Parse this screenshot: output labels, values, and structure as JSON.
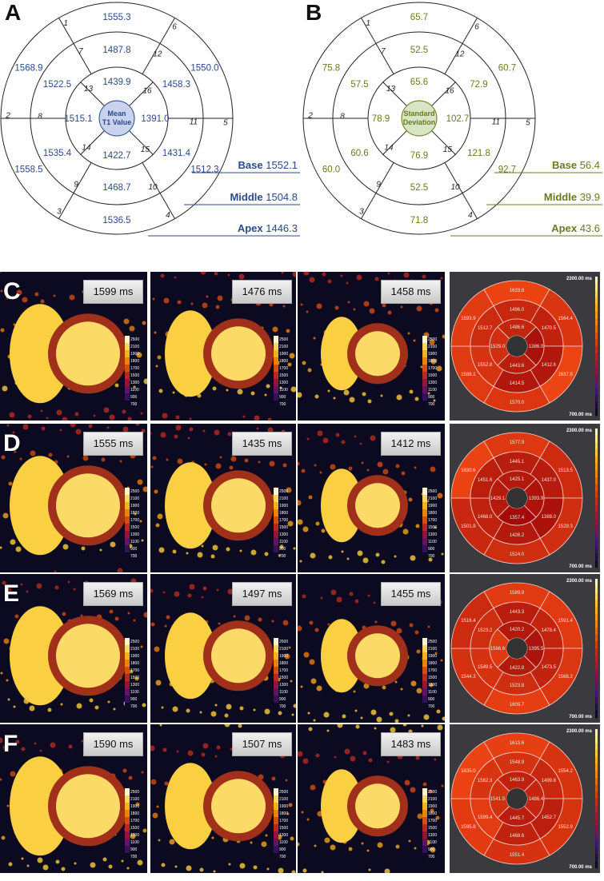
{
  "panel_a": {
    "label": "A",
    "center_text": [
      "Mean",
      "T1 Value"
    ],
    "values": {
      "s1": "1555.3",
      "s2": "1568.9",
      "s3": "1558.5",
      "s4": "1536.5",
      "s5": "1512.3",
      "s6": "1550.0",
      "s7": "1487.8",
      "s8": "1522.5",
      "s9": "1535.4",
      "s10": "1468.7",
      "s11": "1431.4",
      "s12": "1458.3",
      "s13": "1439.9",
      "s14": "1515.1",
      "s15": "1422.7",
      "s16": "1391.0"
    },
    "summary": [
      {
        "name": "Base",
        "value": "1552.1"
      },
      {
        "name": "Middle",
        "value": "1504.8"
      },
      {
        "name": "Apex",
        "value": "1446.3"
      }
    ],
    "color": "#2a4a8a",
    "center_fill": "#c9d3ee"
  },
  "panel_b": {
    "label": "B",
    "center_text": [
      "Standard",
      "Deviation"
    ],
    "values": {
      "s1": "65.7",
      "s2": "75.8",
      "s3": "60.0",
      "s4": "71.8",
      "s5": "92.7",
      "s6": "60.7",
      "s7": "52.5",
      "s8": "57.5",
      "s9": "60.6",
      "s10": "52.5",
      "s11": "121.8",
      "s12": "72.9",
      "s13": "65.6",
      "s14": "78.9",
      "s15": "76.9",
      "s16": "102.7"
    },
    "summary": [
      {
        "name": "Base",
        "value": "56.4"
      },
      {
        "name": "Middle",
        "value": "39.9"
      },
      {
        "name": "Apex",
        "value": "43.6"
      }
    ],
    "color": "#6b7a1e",
    "center_fill": "#d7e5c4"
  },
  "segment_numbers": [
    "1",
    "2",
    "3",
    "4",
    "5",
    "6",
    "7",
    "8",
    "9",
    "10",
    "11",
    "12",
    "13",
    "14",
    "15",
    "16"
  ],
  "rows": [
    {
      "label": "C",
      "times": [
        "1599 ms",
        "1476 ms",
        "1458 ms"
      ],
      "colorbar_ticks": [
        "2500",
        "2100",
        "1900",
        "1800",
        "1700",
        "1500",
        "1300",
        "1100",
        "900",
        "700"
      ],
      "bullseye": {
        "max_label": "2300.00 ms",
        "min_label": "700.00 ms",
        "outer": [
          "1633.8",
          "1564.4",
          "1637.8",
          "1570.0",
          "1588.1",
          "1593.9"
        ],
        "mid": [
          "1496.0",
          "1470.5",
          "1412.6",
          "1414.5",
          "1552.8",
          "1512.7"
        ],
        "inner": [
          "1486.6",
          "1386.0",
          "1443.6",
          "1529.0"
        ]
      }
    },
    {
      "label": "D",
      "times": [
        "1555 ms",
        "1435 ms",
        "1412 ms"
      ],
      "colorbar_ticks": [
        "2500",
        "2100",
        "1900",
        "1800",
        "1700",
        "1500",
        "1300",
        "1100",
        "900",
        "700"
      ],
      "bullseye": {
        "max_label": "2300.00 ms",
        "min_label": "700.00 ms",
        "outer": [
          "1577.9",
          "1513.5",
          "1529.3",
          "1524.0",
          "1501.8",
          "1630.6"
        ],
        "mid": [
          "1445.1",
          "1437.0",
          "1388.0",
          "1426.2",
          "1468.0",
          "1451.6"
        ],
        "inner": [
          "1425.1",
          "1393.9",
          "1357.4",
          "1429.1"
        ]
      }
    },
    {
      "label": "E",
      "times": [
        "1569 ms",
        "1497 ms",
        "1455 ms"
      ],
      "colorbar_ticks": [
        "2500",
        "2100",
        "1900",
        "1800",
        "1700",
        "1500",
        "1300",
        "1100",
        "900",
        "700"
      ],
      "bullseye": {
        "max_label": "2300.00 ms",
        "min_label": "700.00 ms",
        "outer": [
          "1589.9",
          "1591.4",
          "1568.2",
          "1609.7",
          "1544.3",
          "1516.4"
        ],
        "mid": [
          "1443.3",
          "1478.4",
          "1473.5",
          "1523.8",
          "1549.5",
          "1523.2"
        ],
        "inner": [
          "1420.2",
          "1395.5",
          "1422.8",
          "1586.6"
        ]
      }
    },
    {
      "label": "F",
      "times": [
        "1590 ms",
        "1507 ms",
        "1483 ms"
      ],
      "colorbar_ticks": [
        "2500",
        "2100",
        "1900",
        "1800",
        "1700",
        "1500",
        "1300",
        "1100",
        "900",
        "700"
      ],
      "bullseye": {
        "max_label": "2300.00 ms",
        "min_label": "700.00 ms",
        "outer": [
          "1613.6",
          "1554.2",
          "1552.9",
          "1551.4",
          "1595.8",
          "1635.0"
        ],
        "mid": [
          "1548.9",
          "1499.8",
          "1452.7",
          "1468.6",
          "1599.4",
          "1562.3"
        ],
        "inner": [
          "1463.9",
          "1486.4",
          "1445.7",
          "1541.5"
        ]
      }
    }
  ]
}
